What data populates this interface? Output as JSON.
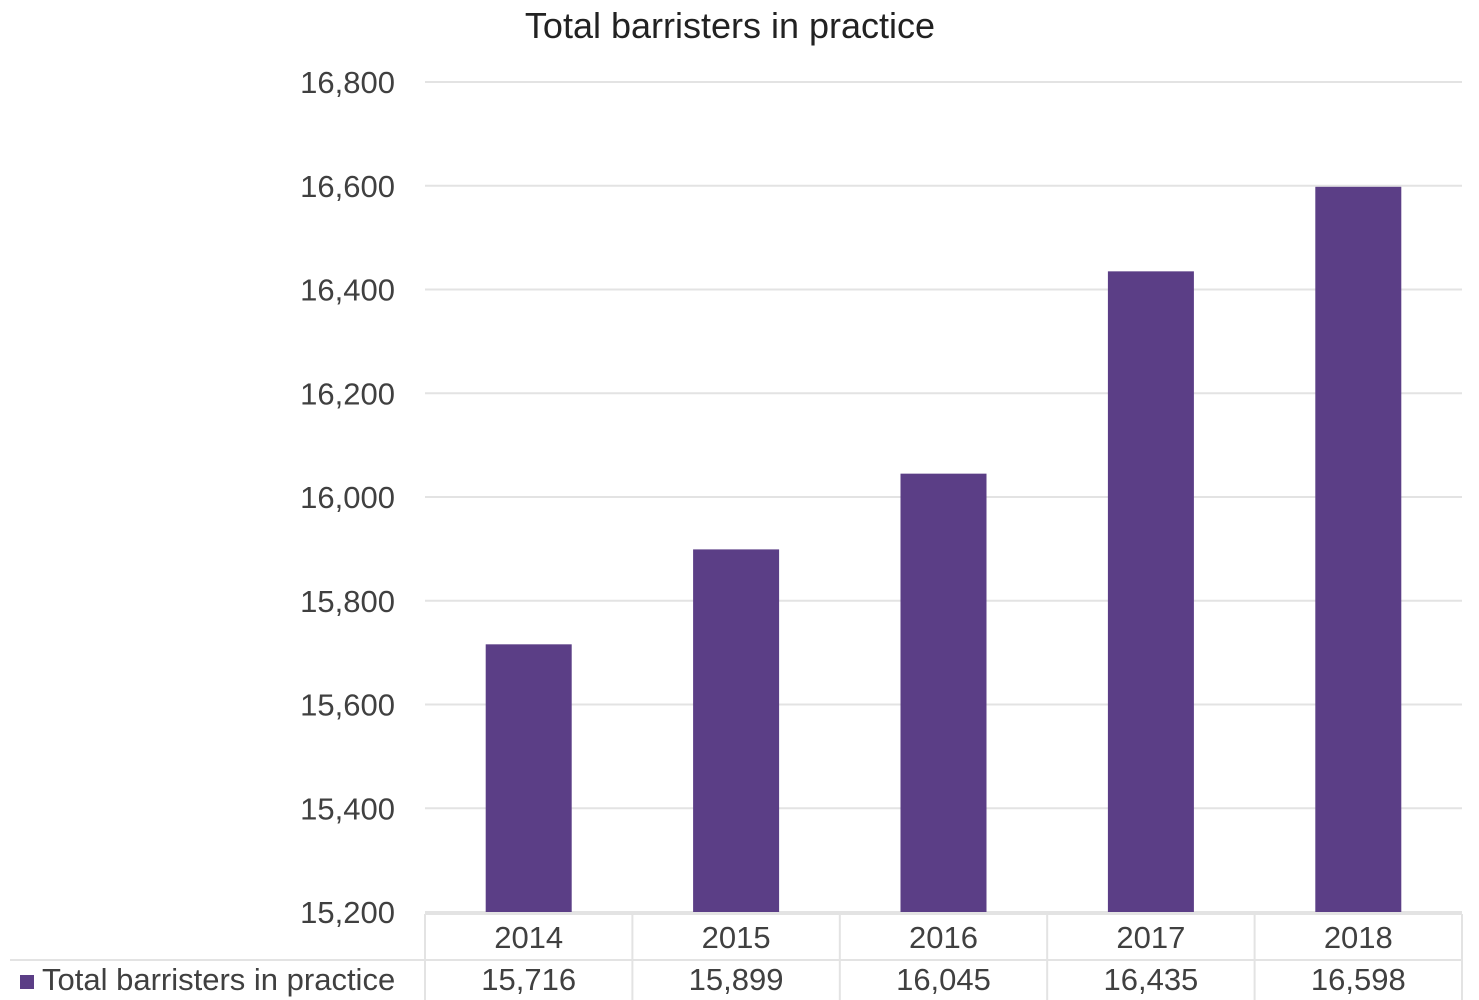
{
  "chart_data": {
    "type": "bar",
    "title": "Total barristers in practice",
    "xlabel": "",
    "ylabel": "",
    "categories": [
      "2014",
      "2015",
      "2016",
      "2017",
      "2018"
    ],
    "series": [
      {
        "name": "Total barristers in practice",
        "values": [
          15716,
          15899,
          16045,
          16435,
          16598
        ],
        "value_labels": [
          "15,716",
          "15,899",
          "16,045",
          "16,435",
          "16,598"
        ]
      }
    ],
    "ylim": [
      15200,
      16800
    ],
    "yticks": [
      15200,
      15400,
      15600,
      15800,
      16000,
      16200,
      16400,
      16600,
      16800
    ],
    "ytick_labels": [
      "15,200",
      "15,400",
      "15,600",
      "15,800",
      "16,000",
      "16,200",
      "16,400",
      "16,600",
      "16,800"
    ],
    "grid": true,
    "legend": "data-table-bottom",
    "colors": {
      "bar": "#5b3e86",
      "grid": "#e3e3e3",
      "text": "#404040",
      "title": "#222222"
    }
  }
}
